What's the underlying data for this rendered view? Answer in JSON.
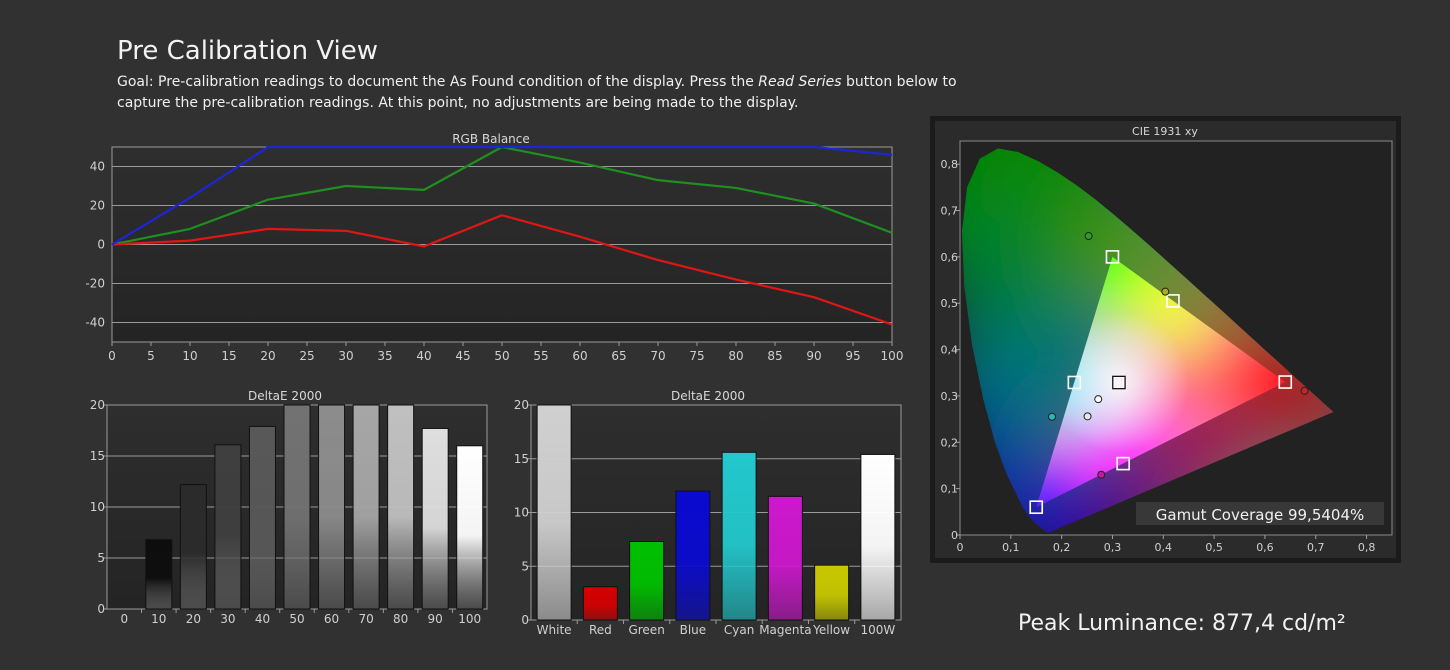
{
  "header": {
    "title": "Pre Calibration View",
    "goal_before": "Goal: Pre-calibration readings to document the As Found condition of the display. Press the ",
    "goal_em": "Read Series",
    "goal_after": " button below to capture the pre-calibration readings. At this point, no adjustments are being made to the display."
  },
  "peak_luminance": "Peak Luminance: 877,4 cd/m²",
  "chart_data": [
    {
      "id": "rgb",
      "type": "line",
      "title": "RGB Balance",
      "x": [
        0,
        10,
        20,
        30,
        40,
        50,
        60,
        70,
        80,
        90,
        100
      ],
      "x_ticks": [
        0,
        5,
        10,
        15,
        20,
        25,
        30,
        35,
        40,
        45,
        50,
        55,
        60,
        65,
        70,
        75,
        80,
        85,
        90,
        95,
        100
      ],
      "y_ticks": [
        40,
        20,
        0,
        -20,
        -40
      ],
      "xlim": [
        0,
        100
      ],
      "ylim": [
        -50,
        50
      ],
      "grid": true,
      "series": [
        {
          "color": "#1f8f1f",
          "values": [
            0,
            8,
            23,
            30,
            28,
            50,
            42,
            33,
            29,
            21,
            6
          ]
        },
        {
          "color": "#e01616",
          "values": [
            0,
            2,
            8,
            7,
            -1,
            15,
            4,
            -8,
            -18,
            -27,
            -41
          ]
        },
        {
          "color": "#1c25d8",
          "values": [
            0,
            24,
            50,
            50,
            50,
            50,
            50,
            50,
            50,
            50,
            46
          ]
        }
      ]
    },
    {
      "id": "deltae_gray",
      "type": "bar",
      "title": "DeltaE 2000",
      "categories": [
        "0",
        "10",
        "20",
        "30",
        "40",
        "50",
        "60",
        "70",
        "80",
        "90",
        "100"
      ],
      "values": [
        0,
        6.8,
        12.2,
        16.1,
        17.9,
        20,
        20,
        20,
        20,
        17.7,
        16
      ],
      "colors": [
        "#000000",
        "#0d0d0d",
        "#2b2b2b",
        "#3f3f3f",
        "#585858",
        "#727272",
        "#8c8c8c",
        "#a6a6a6",
        "#c0c0c0",
        "#dedede",
        "#ffffff"
      ],
      "y_ticks": [
        20,
        15,
        10,
        5,
        0
      ],
      "ylim": [
        0,
        20
      ],
      "grid": true
    },
    {
      "id": "deltae_color",
      "type": "bar",
      "title": "DeltaE 2000",
      "categories": [
        "White",
        "Red",
        "Green",
        "Blue",
        "Cyan",
        "Magenta",
        "Yellow",
        "100W"
      ],
      "values": [
        20,
        3.1,
        7.3,
        12,
        15.6,
        11.5,
        5.1,
        15.4
      ],
      "colors": [
        "#d0d0d0",
        "#d40000",
        "#00c000",
        "#0a0ad0",
        "#22c8cc",
        "#cc18cc",
        "#c8c800",
        "#ffffff"
      ],
      "y_ticks": [
        20,
        15,
        10,
        5,
        0
      ],
      "ylim": [
        0,
        20
      ],
      "grid": true
    },
    {
      "id": "cie",
      "type": "scatter",
      "title": "CIE 1931 xy",
      "x_ticks": [
        "0",
        "0,1",
        "0,2",
        "0,3",
        "0,4",
        "0,5",
        "0,6",
        "0,7",
        "0,8"
      ],
      "y_ticks": [
        "0",
        "0,1",
        "0,2",
        "0,3",
        "0,4",
        "0,5",
        "0,6",
        "0,7",
        "0,8"
      ],
      "xlim": [
        0,
        0.85
      ],
      "ylim": [
        0,
        0.85
      ],
      "grid": false,
      "gamut_coverage": "Gamut Coverage 99,5404%",
      "targets": [
        {
          "name": "red",
          "x": 0.64,
          "y": 0.33
        },
        {
          "name": "green",
          "x": 0.3,
          "y": 0.6
        },
        {
          "name": "blue",
          "x": 0.15,
          "y": 0.06
        },
        {
          "name": "yellow",
          "x": 0.419,
          "y": 0.505
        },
        {
          "name": "cyan",
          "x": 0.225,
          "y": 0.329
        },
        {
          "name": "magenta",
          "x": 0.321,
          "y": 0.154
        },
        {
          "name": "white",
          "x": 0.3127,
          "y": 0.329
        }
      ],
      "measured": [
        {
          "name": "green",
          "x": 0.253,
          "y": 0.645,
          "color": "#2aa02a"
        },
        {
          "name": "yellow",
          "x": 0.404,
          "y": 0.525,
          "color": "#a8b020"
        },
        {
          "name": "white",
          "x": 0.272,
          "y": 0.293,
          "color": "#ffffff"
        },
        {
          "name": "cyan",
          "x": 0.181,
          "y": 0.255,
          "color": "#29b7b7"
        },
        {
          "name": "gray",
          "x": 0.251,
          "y": 0.256,
          "color": "#e8e8e8"
        },
        {
          "name": "magenta",
          "x": 0.278,
          "y": 0.13,
          "color": "#c01aa0"
        },
        {
          "name": "red",
          "x": 0.678,
          "y": 0.311,
          "color": "#d02020"
        }
      ]
    }
  ]
}
